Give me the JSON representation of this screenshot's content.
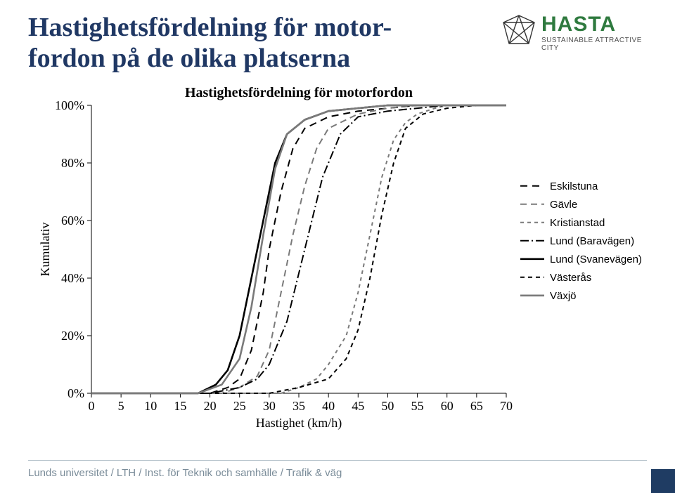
{
  "slide": {
    "title_line1": "Hastighetsfördelning för motor-",
    "title_line2": "fordon på de olika platserna",
    "title_color": "#203864",
    "title_fontsize": 38,
    "footer_text": "Lunds universitet / LTH / Inst. för Teknik och samhälle / Trafik & väg",
    "footer_color": "#7a8c99",
    "footer_block_color": "#1f3c63",
    "background": "#ffffff"
  },
  "logo": {
    "main_text": "HASTA",
    "main_color": "#2f7a3f",
    "sub_text": "SUSTAINABLE ATTRACTIVE CITY",
    "sub_color": "#505050",
    "mark_stroke": "#333333",
    "mark_stroke_width": 1.4
  },
  "chart": {
    "type": "line",
    "title": "Hastighetsfördelning för motorfordon",
    "title_fontsize": 20,
    "xlabel": "Hastighet (km/h)",
    "ylabel": "Kumulativ",
    "label_fontsize": 18,
    "xlim": [
      0,
      70
    ],
    "ylim": [
      0,
      100
    ],
    "xticks": [
      0,
      5,
      10,
      15,
      20,
      25,
      30,
      35,
      40,
      45,
      50,
      55,
      60,
      65,
      70
    ],
    "yticks": [
      0,
      20,
      40,
      60,
      80,
      100
    ],
    "ytick_labels": [
      "0%",
      "20%",
      "40%",
      "60%",
      "80%",
      "100%"
    ],
    "grid": false,
    "background_color": "#ffffff",
    "axis_color": "#000000",
    "tick_length": 6,
    "line_width_thin": 1.6,
    "line_width_thick": 2.6,
    "legend_position": "right-middle",
    "legend_line_length": 34,
    "series": [
      {
        "name": "Eskilstuna",
        "color": "#000000",
        "dash": "10 7",
        "width": 2.0,
        "data": [
          [
            0,
            0
          ],
          [
            20,
            0
          ],
          [
            23,
            2
          ],
          [
            25,
            5
          ],
          [
            27,
            15
          ],
          [
            29,
            35
          ],
          [
            30,
            50
          ],
          [
            32,
            70
          ],
          [
            34,
            85
          ],
          [
            36,
            92
          ],
          [
            40,
            96
          ],
          [
            45,
            98
          ],
          [
            50,
            99
          ],
          [
            55,
            100
          ],
          [
            70,
            100
          ]
        ]
      },
      {
        "name": "Gävle",
        "color": "#7a7a7a",
        "dash": "9 6",
        "width": 2.0,
        "data": [
          [
            0,
            0
          ],
          [
            22,
            0
          ],
          [
            25,
            2
          ],
          [
            28,
            6
          ],
          [
            30,
            15
          ],
          [
            32,
            35
          ],
          [
            34,
            55
          ],
          [
            36,
            72
          ],
          [
            38,
            85
          ],
          [
            40,
            92
          ],
          [
            45,
            97
          ],
          [
            50,
            99
          ],
          [
            55,
            100
          ],
          [
            70,
            100
          ]
        ]
      },
      {
        "name": "Kristianstad",
        "color": "#7a7a7a",
        "dash": "5 5",
        "width": 2.0,
        "data": [
          [
            0,
            0
          ],
          [
            32,
            0
          ],
          [
            35,
            2
          ],
          [
            38,
            5
          ],
          [
            40,
            10
          ],
          [
            43,
            20
          ],
          [
            45,
            35
          ],
          [
            47,
            55
          ],
          [
            49,
            75
          ],
          [
            51,
            88
          ],
          [
            53,
            94
          ],
          [
            55,
            97
          ],
          [
            58,
            99
          ],
          [
            60,
            100
          ],
          [
            70,
            100
          ]
        ]
      },
      {
        "name": "Lund (Baravägen)",
        "color": "#000000",
        "dash": "12 4 2 4",
        "width": 2.0,
        "data": [
          [
            0,
            0
          ],
          [
            20,
            0
          ],
          [
            25,
            2
          ],
          [
            28,
            5
          ],
          [
            30,
            10
          ],
          [
            33,
            25
          ],
          [
            36,
            50
          ],
          [
            39,
            75
          ],
          [
            42,
            90
          ],
          [
            45,
            96
          ],
          [
            50,
            98
          ],
          [
            55,
            99
          ],
          [
            60,
            100
          ],
          [
            70,
            100
          ]
        ]
      },
      {
        "name": "Lund (Svanevägen)",
        "color": "#000000",
        "dash": "",
        "width": 2.6,
        "data": [
          [
            0,
            0
          ],
          [
            18,
            0
          ],
          [
            21,
            3
          ],
          [
            23,
            8
          ],
          [
            25,
            20
          ],
          [
            27,
            40
          ],
          [
            29,
            60
          ],
          [
            31,
            80
          ],
          [
            33,
            90
          ],
          [
            36,
            95
          ],
          [
            40,
            98
          ],
          [
            45,
            99
          ],
          [
            50,
            100
          ],
          [
            70,
            100
          ]
        ]
      },
      {
        "name": "Västerås",
        "color": "#000000",
        "dash": "6 5",
        "width": 2.0,
        "data": [
          [
            0,
            0
          ],
          [
            30,
            0
          ],
          [
            35,
            2
          ],
          [
            40,
            5
          ],
          [
            43,
            12
          ],
          [
            45,
            22
          ],
          [
            47,
            40
          ],
          [
            49,
            62
          ],
          [
            51,
            80
          ],
          [
            53,
            92
          ],
          [
            56,
            97
          ],
          [
            60,
            99
          ],
          [
            65,
            100
          ],
          [
            70,
            100
          ]
        ]
      },
      {
        "name": "Växjö",
        "color": "#7a7a7a",
        "dash": "",
        "width": 2.6,
        "data": [
          [
            0,
            0
          ],
          [
            18,
            0
          ],
          [
            22,
            3
          ],
          [
            25,
            12
          ],
          [
            27,
            30
          ],
          [
            29,
            55
          ],
          [
            31,
            78
          ],
          [
            33,
            90
          ],
          [
            36,
            95
          ],
          [
            40,
            98
          ],
          [
            45,
            99
          ],
          [
            50,
            100
          ],
          [
            70,
            100
          ]
        ]
      }
    ]
  }
}
